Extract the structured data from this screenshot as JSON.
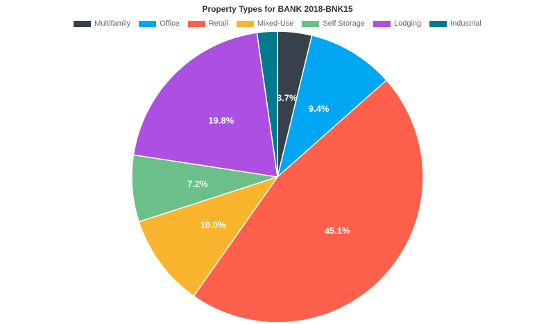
{
  "chart_data": {
    "type": "pie",
    "title": "Property Types for BANK 2018-BNK15",
    "legend_position": "top",
    "slices": [
      {
        "name": "Multifamily",
        "value": 3.7,
        "label": "3.7%",
        "color": "#36414c",
        "show_label": true
      },
      {
        "name": "Office",
        "value": 9.4,
        "label": "9.4%",
        "color": "#00a6f2",
        "show_label": true
      },
      {
        "name": "Retail",
        "value": 45.1,
        "label": "45.1%",
        "color": "#ff604b",
        "show_label": true
      },
      {
        "name": "Mixed-Use",
        "value": 10.0,
        "label": "10.0%",
        "color": "#fbb42d",
        "show_label": true
      },
      {
        "name": "Self Storage",
        "value": 7.2,
        "label": "7.2%",
        "color": "#6ac088",
        "show_label": true
      },
      {
        "name": "Lodging",
        "value": 19.8,
        "label": "19.8%",
        "color": "#ad4fe0",
        "show_label": true
      },
      {
        "name": "Industrial",
        "value": 2.2,
        "label": "",
        "color": "#007a8c",
        "show_label": false
      }
    ]
  }
}
